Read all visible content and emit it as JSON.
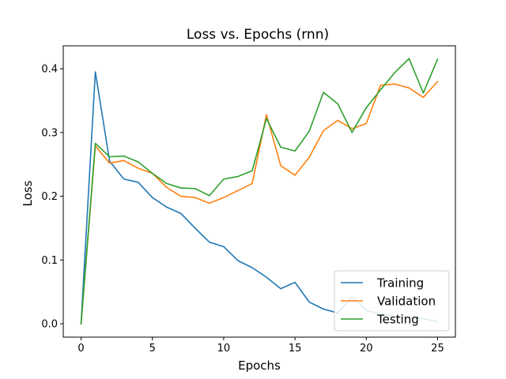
{
  "chart_data": {
    "type": "line",
    "title": "Loss vs. Epochs (rnn)",
    "xlabel": "Epochs",
    "ylabel": "Loss",
    "xlim": [
      -1.25,
      26.25
    ],
    "ylim": [
      -0.021,
      0.436
    ],
    "xticks": [
      0,
      5,
      10,
      15,
      20,
      25
    ],
    "yticks": [
      0.0,
      0.1,
      0.2,
      0.3,
      0.4
    ],
    "xtick_labels": [
      "0",
      "5",
      "10",
      "15",
      "20",
      "25"
    ],
    "ytick_labels": [
      "0.0",
      "0.1",
      "0.2",
      "0.3",
      "0.4"
    ],
    "grid": false,
    "legend_position": "lower-right",
    "x": [
      0,
      1,
      2,
      3,
      4,
      5,
      6,
      7,
      8,
      9,
      10,
      11,
      12,
      13,
      14,
      15,
      16,
      17,
      18,
      19,
      20,
      21,
      22,
      23,
      24,
      25
    ],
    "series": [
      {
        "name": "Training",
        "color": "#1f77b4",
        "values": [
          0.0,
          0.395,
          0.255,
          0.227,
          0.222,
          0.198,
          0.183,
          0.173,
          0.15,
          0.128,
          0.121,
          0.099,
          0.088,
          0.073,
          0.055,
          0.065,
          0.034,
          0.023,
          0.017,
          0.042,
          0.021,
          0.015,
          0.012,
          0.01,
          0.008,
          0.003
        ]
      },
      {
        "name": "Validation",
        "color": "#ff7f0e",
        "values": [
          0.0,
          0.279,
          0.252,
          0.256,
          0.244,
          0.236,
          0.214,
          0.2,
          0.198,
          0.189,
          0.198,
          0.209,
          0.22,
          0.328,
          0.248,
          0.233,
          0.261,
          0.303,
          0.319,
          0.306,
          0.314,
          0.374,
          0.376,
          0.37,
          0.355,
          0.38
        ]
      },
      {
        "name": "Testing",
        "color": "#2ca02c",
        "values": [
          0.0,
          0.283,
          0.262,
          0.263,
          0.254,
          0.236,
          0.22,
          0.213,
          0.212,
          0.201,
          0.227,
          0.231,
          0.24,
          0.322,
          0.277,
          0.271,
          0.302,
          0.363,
          0.345,
          0.3,
          0.339,
          0.367,
          0.394,
          0.416,
          0.362,
          0.415
        ]
      }
    ]
  }
}
